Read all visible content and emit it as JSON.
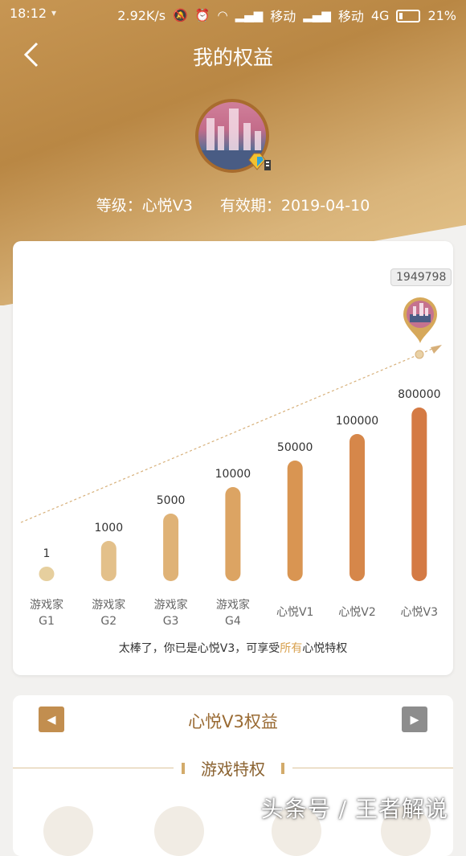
{
  "status_bar": {
    "time": "18:12",
    "speed": "2.92K/s",
    "carrier1": "移动",
    "carrier2": "移动",
    "network": "4G",
    "battery": "21%"
  },
  "header": {
    "title": "我的权益"
  },
  "profile": {
    "level_text": "等级：心悦V3",
    "validity_text": "有效期：2019-04-10"
  },
  "chart": {
    "current_score": "1949798",
    "message_prefix": "太棒了，你已是心悦V3，可享受",
    "message_highlight": "所有",
    "message_suffix": "心悦特权"
  },
  "chart_data": {
    "type": "bar",
    "categories": [
      "游戏家G1",
      "游戏家G2",
      "游戏家G3",
      "游戏家G4",
      "心悦V1",
      "心悦V2",
      "心悦V3"
    ],
    "category_lines": [
      [
        "游戏家",
        "G1"
      ],
      [
        "游戏家",
        "G2"
      ],
      [
        "游戏家",
        "G3"
      ],
      [
        "游戏家",
        "G4"
      ],
      [
        "心悦V1"
      ],
      [
        "心悦V2"
      ],
      [
        "心悦V3"
      ]
    ],
    "values": [
      1,
      1000,
      5000,
      10000,
      50000,
      100000,
      800000
    ],
    "value_labels": [
      "1",
      "1000",
      "5000",
      "10000",
      "50000",
      "100000",
      "800000"
    ],
    "colors": [
      "#e6cf9e",
      "#e3c08a",
      "#dfb276",
      "#dca463",
      "#d99552",
      "#d6874a",
      "#d47a44"
    ]
  },
  "benefits": {
    "title": "心悦V3权益",
    "section_title": "游戏特权",
    "prev_icon": "arrow-left-icon",
    "next_icon": "arrow-right-icon"
  },
  "watermark": "头条号 / 王者解说"
}
